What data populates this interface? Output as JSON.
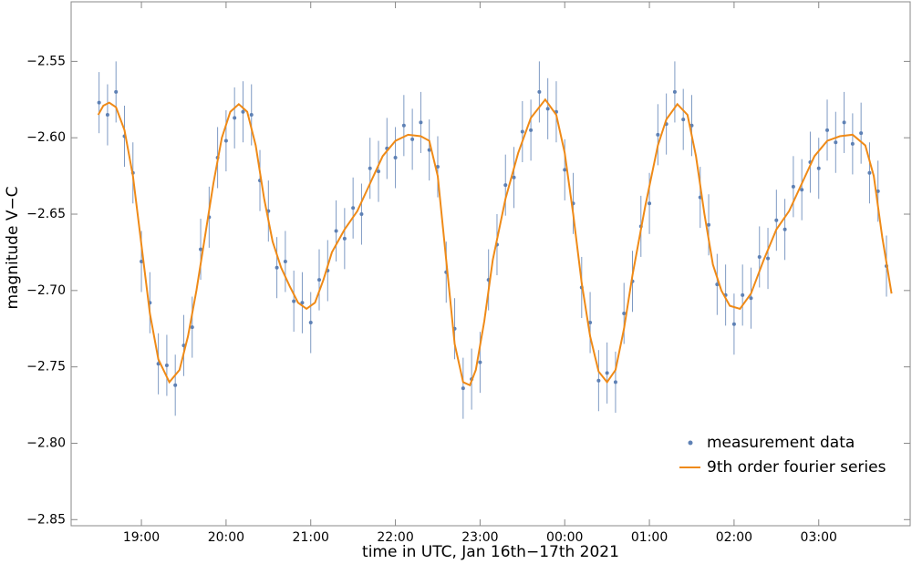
{
  "chart_data": {
    "type": "scatter",
    "x_label": "time in UTC, Jan 16th−17th 2021",
    "y_label": "magnitude V−C",
    "xlim": [
      18.17,
      28.08
    ],
    "ylim": [
      -2.854,
      -2.511
    ],
    "xticks": [
      {
        "value": 19,
        "label": "19:00"
      },
      {
        "value": 20,
        "label": "20:00"
      },
      {
        "value": 21,
        "label": "21:00"
      },
      {
        "value": 22,
        "label": "22:00"
      },
      {
        "value": 23,
        "label": "23:00"
      },
      {
        "value": 24,
        "label": "00:00"
      },
      {
        "value": 25,
        "label": "01:00"
      },
      {
        "value": 26,
        "label": "02:00"
      },
      {
        "value": 27,
        "label": "03:00"
      }
    ],
    "yticks": [
      {
        "value": -2.85,
        "label": "−2.85"
      },
      {
        "value": -2.8,
        "label": "−2.80"
      },
      {
        "value": -2.75,
        "label": "−2.75"
      },
      {
        "value": -2.7,
        "label": "−2.70"
      },
      {
        "value": -2.65,
        "label": "−2.65"
      },
      {
        "value": -2.6,
        "label": "−2.60"
      },
      {
        "value": -2.55,
        "label": "−2.55"
      }
    ],
    "legend": "bottom-right",
    "series": [
      {
        "name": "measurement data",
        "color": "#5e81b5",
        "kind": "points",
        "x": [
          18.5,
          18.6,
          18.7,
          18.8,
          18.9,
          19.0,
          19.1,
          19.2,
          19.3,
          19.4,
          19.5,
          19.6,
          19.7,
          19.8,
          19.9,
          20.0,
          20.1,
          20.2,
          20.3,
          20.4,
          20.5,
          20.6,
          20.7,
          20.8,
          20.9,
          21.0,
          21.1,
          21.2,
          21.3,
          21.4,
          21.5,
          21.6,
          21.7,
          21.8,
          21.9,
          22.0,
          22.1,
          22.2,
          22.3,
          22.4,
          22.5,
          22.6,
          22.7,
          22.8,
          22.9,
          23.0,
          23.1,
          23.2,
          23.3,
          23.4,
          23.5,
          23.6,
          23.7,
          23.8,
          23.9,
          24.0,
          24.1,
          24.2,
          24.3,
          24.4,
          24.5,
          24.6,
          24.7,
          24.8,
          24.9,
          25.0,
          25.1,
          25.2,
          25.3,
          25.4,
          25.5,
          25.6,
          25.7,
          25.8,
          25.9,
          26.0,
          26.1,
          26.2,
          26.3,
          26.4,
          26.5,
          26.6,
          26.7,
          26.8,
          26.9,
          27.0,
          27.1,
          27.2,
          27.3,
          27.4,
          27.5,
          27.6,
          27.7,
          27.8
        ],
        "values": [
          -2.577,
          -2.585,
          -2.57,
          -2.599,
          -2.623,
          -2.681,
          -2.708,
          -2.748,
          -2.749,
          -2.762,
          -2.736,
          -2.724,
          -2.673,
          -2.652,
          -2.613,
          -2.602,
          -2.587,
          -2.583,
          -2.585,
          -2.628,
          -2.648,
          -2.685,
          -2.681,
          -2.707,
          -2.708,
          -2.721,
          -2.693,
          -2.687,
          -2.661,
          -2.666,
          -2.646,
          -2.65,
          -2.62,
          -2.622,
          -2.607,
          -2.613,
          -2.592,
          -2.601,
          -2.59,
          -2.608,
          -2.619,
          -2.688,
          -2.725,
          -2.764,
          -2.758,
          -2.747,
          -2.693,
          -2.67,
          -2.631,
          -2.626,
          -2.596,
          -2.595,
          -2.57,
          -2.581,
          -2.583,
          -2.621,
          -2.643,
          -2.698,
          -2.721,
          -2.759,
          -2.754,
          -2.76,
          -2.715,
          -2.694,
          -2.658,
          -2.643,
          -2.598,
          -2.591,
          -2.57,
          -2.588,
          -2.592,
          -2.639,
          -2.657,
          -2.696,
          -2.703,
          -2.722,
          -2.703,
          -2.705,
          -2.678,
          -2.679,
          -2.654,
          -2.66,
          -2.632,
          -2.634,
          -2.616,
          -2.62,
          -2.595,
          -2.603,
          -2.59,
          -2.604,
          -2.597,
          -2.623,
          -2.635,
          -2.684
        ],
        "errors": [
          0.02,
          0.02,
          0.02,
          0.02,
          0.02,
          0.02,
          0.02,
          0.02,
          0.02,
          0.02,
          0.02,
          0.02,
          0.02,
          0.02,
          0.02,
          0.02,
          0.02,
          0.02,
          0.02,
          0.02,
          0.02,
          0.02,
          0.02,
          0.02,
          0.02,
          0.02,
          0.02,
          0.02,
          0.02,
          0.02,
          0.02,
          0.02,
          0.02,
          0.02,
          0.02,
          0.02,
          0.02,
          0.02,
          0.02,
          0.02,
          0.02,
          0.02,
          0.02,
          0.02,
          0.02,
          0.02,
          0.02,
          0.02,
          0.02,
          0.02,
          0.02,
          0.02,
          0.02,
          0.02,
          0.02,
          0.02,
          0.02,
          0.02,
          0.02,
          0.02,
          0.02,
          0.02,
          0.02,
          0.02,
          0.02,
          0.02,
          0.02,
          0.02,
          0.02,
          0.02,
          0.02,
          0.02,
          0.02,
          0.02,
          0.02,
          0.02,
          0.02,
          0.02,
          0.02,
          0.02,
          0.02,
          0.02,
          0.02,
          0.02,
          0.02,
          0.02,
          0.02,
          0.02,
          0.02,
          0.02,
          0.02,
          0.02,
          0.02,
          0.02
        ]
      },
      {
        "name": "9th order fourier series",
        "color": "#ef8a17",
        "kind": "line",
        "x": [
          18.49,
          18.55,
          18.62,
          18.7,
          18.8,
          18.9,
          19.0,
          19.1,
          19.2,
          19.33,
          19.45,
          19.55,
          19.65,
          19.75,
          19.85,
          19.95,
          20.05,
          20.15,
          20.25,
          20.35,
          20.45,
          20.55,
          20.65,
          20.75,
          20.85,
          20.95,
          21.05,
          21.15,
          21.25,
          21.4,
          21.55,
          21.7,
          21.85,
          22.0,
          22.15,
          22.3,
          22.4,
          22.5,
          22.6,
          22.7,
          22.8,
          22.88,
          22.95,
          23.05,
          23.15,
          23.3,
          23.45,
          23.6,
          23.77,
          23.9,
          24.0,
          24.1,
          24.2,
          24.3,
          24.4,
          24.5,
          24.6,
          24.7,
          24.8,
          24.95,
          25.1,
          25.2,
          25.33,
          25.45,
          25.55,
          25.65,
          25.75,
          25.85,
          25.95,
          26.07,
          26.2,
          26.35,
          26.5,
          26.65,
          26.8,
          26.95,
          27.1,
          27.25,
          27.4,
          27.55,
          27.65,
          27.75,
          27.86
        ],
        "values": [
          -2.585,
          -2.579,
          -2.577,
          -2.58,
          -2.595,
          -2.625,
          -2.67,
          -2.715,
          -2.745,
          -2.76,
          -2.752,
          -2.73,
          -2.7,
          -2.665,
          -2.63,
          -2.6,
          -2.583,
          -2.578,
          -2.583,
          -2.605,
          -2.64,
          -2.668,
          -2.685,
          -2.697,
          -2.708,
          -2.712,
          -2.708,
          -2.693,
          -2.675,
          -2.66,
          -2.648,
          -2.63,
          -2.612,
          -2.602,
          -2.598,
          -2.599,
          -2.602,
          -2.625,
          -2.68,
          -2.735,
          -2.76,
          -2.762,
          -2.752,
          -2.72,
          -2.68,
          -2.64,
          -2.61,
          -2.587,
          -2.575,
          -2.585,
          -2.61,
          -2.65,
          -2.695,
          -2.73,
          -2.753,
          -2.76,
          -2.752,
          -2.725,
          -2.69,
          -2.645,
          -2.605,
          -2.588,
          -2.578,
          -2.585,
          -2.612,
          -2.65,
          -2.683,
          -2.7,
          -2.71,
          -2.712,
          -2.702,
          -2.68,
          -2.66,
          -2.648,
          -2.63,
          -2.612,
          -2.602,
          -2.599,
          -2.598,
          -2.605,
          -2.625,
          -2.665,
          -2.702
        ]
      }
    ]
  }
}
